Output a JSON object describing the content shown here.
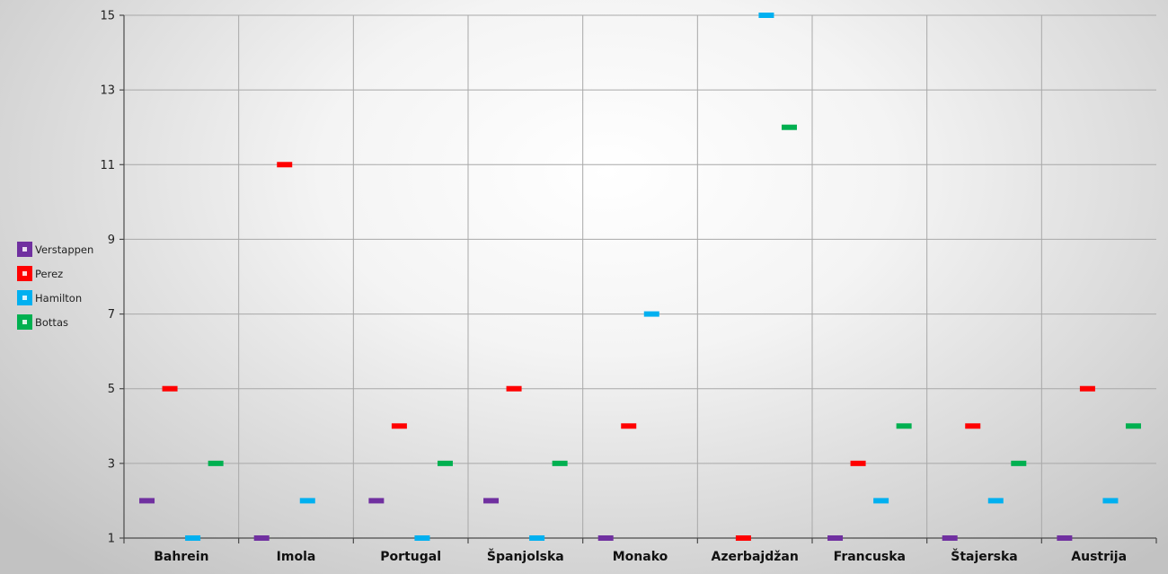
{
  "chart_data": {
    "type": "scatter",
    "categories": [
      "Bahrein",
      "Imola",
      "Portugal",
      "Španjolska",
      "Monako",
      "Azerbajdžan",
      "Francuska",
      "Štajerska",
      "Austrija"
    ],
    "series": [
      {
        "name": "Verstappen",
        "color": "#7030a0",
        "values": [
          2,
          1,
          2,
          2,
          1,
          null,
          1,
          1,
          1
        ]
      },
      {
        "name": "Perez",
        "color": "#ff0000",
        "values": [
          5,
          11,
          4,
          5,
          4,
          1,
          3,
          4,
          5
        ]
      },
      {
        "name": "Hamilton",
        "color": "#00b0f0",
        "values": [
          1,
          2,
          1,
          1,
          7,
          15,
          2,
          2,
          2
        ]
      },
      {
        "name": "Bottas",
        "color": "#00b050",
        "values": [
          3,
          null,
          3,
          3,
          null,
          12,
          4,
          3,
          4
        ]
      }
    ],
    "yticks": [
      1,
      3,
      5,
      7,
      9,
      11,
      13,
      15
    ],
    "ylim": [
      1,
      15
    ],
    "title": "",
    "xlabel": "",
    "ylabel": "",
    "legend_position": "left",
    "grid": true
  }
}
